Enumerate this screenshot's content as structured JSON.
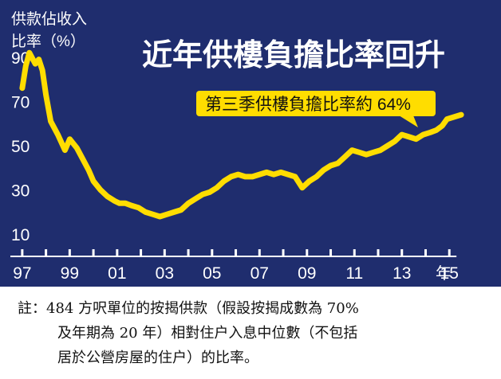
{
  "colors": {
    "background": "#1f2d6e",
    "line": "#ffdd00",
    "callout": "#ffdd00",
    "text": "#ffffff",
    "tick": "#ffffff"
  },
  "chart_data": {
    "type": "line",
    "title": "近年供樓負擔比率回升",
    "ylabel_line1": "供款佔收入",
    "ylabel_line2": "比率（%）",
    "xlabel": "年",
    "annotation": "第三季供樓負擔比率約 64%",
    "ylim": [
      0,
      100
    ],
    "yticks": [
      10,
      30,
      50,
      70,
      90
    ],
    "xlim": [
      1996.5,
      2015.9
    ],
    "xticks": [
      1997,
      1999,
      2001,
      2003,
      2005,
      2007,
      2009,
      2011,
      2013,
      2015
    ],
    "xticklabels": [
      "97",
      "99",
      "01",
      "03",
      "05",
      "07",
      "09",
      "11",
      "13",
      "15"
    ],
    "legend": "none",
    "grid": false,
    "series": [
      {
        "x": [
          1997.0,
          1997.15,
          1997.3,
          1997.55,
          1997.7,
          1997.85,
          1998.0,
          1998.2,
          1998.5,
          1998.8,
          1999.0,
          1999.3,
          1999.55,
          1999.8,
          2000.0,
          2000.3,
          2000.6,
          2000.9,
          2001.1,
          2001.35,
          2001.6,
          2001.9,
          2002.2,
          2002.5,
          2002.8,
          2003.1,
          2003.4,
          2003.7,
          2004.0,
          2004.3,
          2004.6,
          2004.9,
          2005.2,
          2005.5,
          2005.8,
          2006.1,
          2006.4,
          2006.7,
          2007.0,
          2007.3,
          2007.6,
          2007.9,
          2008.2,
          2008.5,
          2008.8,
          2009.1,
          2009.4,
          2009.7,
          2010.0,
          2010.3,
          2010.6,
          2010.9,
          2011.2,
          2011.5,
          2011.8,
          2012.1,
          2012.4,
          2012.7,
          2013.0,
          2013.3,
          2013.6,
          2013.9,
          2014.2,
          2014.45,
          2014.7,
          2014.9,
          2015.2,
          2015.5
        ],
        "y": [
          76,
          86,
          92,
          87,
          89,
          84,
          73,
          61,
          55,
          48,
          53,
          49,
          44,
          39,
          34,
          30,
          27,
          25,
          24,
          24,
          23,
          22,
          20,
          19,
          18,
          19,
          20,
          21,
          24,
          26,
          28,
          29,
          31,
          34,
          36,
          37,
          36,
          36,
          37,
          38,
          37,
          38,
          37,
          36,
          31,
          34,
          36,
          39,
          41,
          42,
          45,
          48,
          47,
          46,
          47,
          48,
          50,
          52,
          55,
          54,
          53,
          55,
          56,
          57,
          59,
          62,
          63,
          64
        ]
      }
    ]
  },
  "note": {
    "line1": "註：484 方呎單位的按揭供款（假設按揭成數為 70%",
    "line2": "及年期為 20 年）相對住户入息中位數（不包括",
    "line3": "居於公營房屋的住户）的比率。"
  }
}
